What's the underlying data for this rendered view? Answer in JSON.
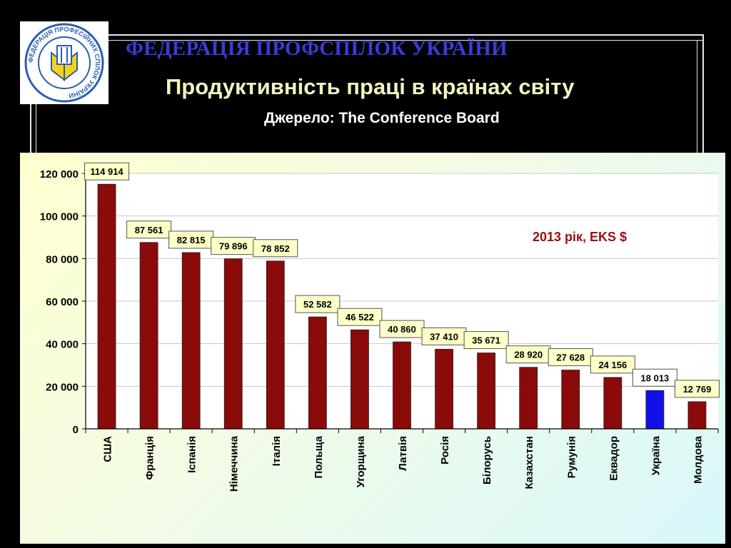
{
  "header": {
    "org_name": "ФЕДЕРАЦІЯ ПРОФСПІЛОК УКРАЇНИ",
    "title": "Продуктивність праці в країнах світу",
    "subtitle": "Джерело: The Conference Board",
    "logo_text": "ФЕДЕРАЦІЯ ПРОФЕСІЙНИХ СПІЛОК УКРАЇНИ"
  },
  "chart_data": {
    "type": "bar",
    "annotation": "2013 рік, EKS $",
    "categories": [
      "США",
      "Франція",
      "Іспанія",
      "Німеччина",
      "Італія",
      "Польща",
      "Угорщина",
      "Латвія",
      "Росія",
      "Білорусь",
      "Казахстан",
      "Румунія",
      "Еквадор",
      "Україна",
      "Молдова"
    ],
    "values": [
      114914,
      87561,
      82815,
      79896,
      78852,
      52582,
      46522,
      40860,
      37410,
      35671,
      28920,
      27628,
      24156,
      18013,
      12769
    ],
    "value_labels": [
      "114 914",
      "87 561",
      "82 815",
      "79 896",
      "78 852",
      "52 582",
      "46 522",
      "40 860",
      "37 410",
      "35 671",
      "28 920",
      "27 628",
      "24 156",
      "18 013",
      "12 769"
    ],
    "ylim": [
      0,
      120000
    ],
    "yticks": [
      0,
      20000,
      40000,
      60000,
      80000,
      100000,
      120000
    ],
    "ytick_labels": [
      "0",
      "20 000",
      "40 000",
      "60 000",
      "80 000",
      "100 000",
      "120 000"
    ],
    "grid": true,
    "colors": {
      "bar": "#8b0a0a",
      "highlight": "#1010e8",
      "highlight_category": "Україна",
      "annotation": "#a01010"
    }
  }
}
